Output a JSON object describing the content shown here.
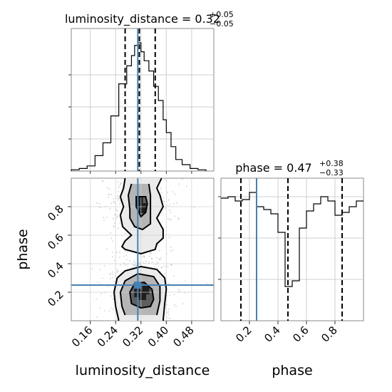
{
  "chart_data": {
    "type": "corner",
    "parameters": [
      "luminosity_distance",
      "phase"
    ],
    "axis_labels": {
      "x_left": "luminosity_distance",
      "x_right": "phase",
      "y_bottom_left": "phase"
    },
    "titles": [
      {
        "parameter": "luminosity_distance",
        "prefix": "luminosity_distance = ",
        "value": "0.32",
        "plus": "+0.05",
        "minus": "−0.05"
      },
      {
        "parameter": "phase",
        "prefix": "phase = ",
        "value": "0.47",
        "plus": "+0.38",
        "minus": "−0.33"
      }
    ],
    "truth": {
      "luminosity_distance": 0.31,
      "phase": 0.25
    },
    "truth_color": "#4682b4",
    "luminosity_distance_axis": {
      "range": [
        0.1,
        0.55
      ],
      "ticks": [
        0.16,
        0.24,
        0.32,
        0.4,
        0.48
      ],
      "tick_labels": [
        "0.16",
        "0.24",
        "0.32",
        "0.40",
        "0.48"
      ],
      "quantiles": [
        0.27,
        0.315,
        0.365
      ]
    },
    "phase_axis": {
      "range": [
        0.0,
        1.0
      ],
      "ticks": [
        0.2,
        0.4,
        0.6,
        0.8
      ],
      "tick_labels": [
        "0.2",
        "0.4",
        "0.6",
        "0.8"
      ],
      "quantiles": [
        0.14,
        0.47,
        0.85
      ]
    },
    "luminosity_distance_hist": {
      "bin_edges": [
        0.1,
        0.125,
        0.15,
        0.175,
        0.2,
        0.225,
        0.25,
        0.275,
        0.29,
        0.3,
        0.31,
        0.32,
        0.33,
        0.345,
        0.36,
        0.375,
        0.39,
        0.4,
        0.415,
        0.43,
        0.45,
        0.475,
        0.5,
        0.525
      ],
      "counts": [
        0.01,
        0.02,
        0.04,
        0.12,
        0.22,
        0.43,
        0.68,
        0.82,
        0.9,
        0.98,
        1.0,
        0.93,
        0.86,
        0.78,
        0.66,
        0.55,
        0.4,
        0.3,
        0.19,
        0.09,
        0.05,
        0.02,
        0.01
      ]
    },
    "phase_hist": {
      "bin_edges": [
        0.0,
        0.05,
        0.1,
        0.15,
        0.2,
        0.25,
        0.3,
        0.35,
        0.4,
        0.45,
        0.5,
        0.55,
        0.6,
        0.65,
        0.7,
        0.75,
        0.8,
        0.85,
        0.9,
        0.95,
        1.0
      ],
      "counts": [
        0.86,
        0.87,
        0.84,
        0.85,
        0.9,
        0.8,
        0.78,
        0.75,
        0.62,
        0.24,
        0.28,
        0.65,
        0.77,
        0.82,
        0.87,
        0.84,
        0.74,
        0.76,
        0.8,
        0.84
      ]
    },
    "scatter_note": "2D joint histogram with contour levels; density bands near phase 0.2-0.3 and 0.75-0.85",
    "contours_2d": [
      {
        "level": "outer_top",
        "points": [
          [
            0.27,
            1.0
          ],
          [
            0.265,
            0.93
          ],
          [
            0.255,
            0.87
          ],
          [
            0.265,
            0.8
          ],
          [
            0.255,
            0.74
          ],
          [
            0.262,
            0.66
          ],
          [
            0.29,
            0.6
          ],
          [
            0.27,
            0.56
          ],
          [
            0.26,
            0.52
          ],
          [
            0.27,
            0.5
          ],
          [
            0.32,
            0.47
          ],
          [
            0.365,
            0.5
          ],
          [
            0.37,
            0.54
          ],
          [
            0.39,
            0.58
          ],
          [
            0.39,
            0.64
          ],
          [
            0.37,
            0.72
          ],
          [
            0.39,
            0.8
          ],
          [
            0.38,
            0.88
          ],
          [
            0.37,
            0.93
          ],
          [
            0.385,
            1.0
          ]
        ]
      },
      {
        "level": "mid_top",
        "points": [
          [
            0.29,
            0.96
          ],
          [
            0.28,
            0.88
          ],
          [
            0.285,
            0.78
          ],
          [
            0.285,
            0.72
          ],
          [
            0.3,
            0.66
          ],
          [
            0.325,
            0.64
          ],
          [
            0.35,
            0.68
          ],
          [
            0.35,
            0.74
          ],
          [
            0.35,
            0.8
          ],
          [
            0.35,
            0.88
          ],
          [
            0.345,
            0.96
          ]
        ]
      },
      {
        "level": "inner_top",
        "points": [
          [
            0.305,
            0.87
          ],
          [
            0.305,
            0.8
          ],
          [
            0.32,
            0.73
          ],
          [
            0.335,
            0.76
          ],
          [
            0.34,
            0.82
          ],
          [
            0.335,
            0.87
          ]
        ]
      },
      {
        "level": "outer_bottom",
        "points": [
          [
            0.25,
            0.0
          ],
          [
            0.24,
            0.1
          ],
          [
            0.235,
            0.2
          ],
          [
            0.245,
            0.3
          ],
          [
            0.27,
            0.35
          ],
          [
            0.32,
            0.38
          ],
          [
            0.37,
            0.36
          ],
          [
            0.395,
            0.3
          ],
          [
            0.4,
            0.22
          ],
          [
            0.395,
            0.12
          ],
          [
            0.39,
            0.0
          ]
        ]
      },
      {
        "level": "mid_bottom",
        "points": [
          [
            0.27,
            0.04
          ],
          [
            0.26,
            0.1
          ],
          [
            0.255,
            0.2
          ],
          [
            0.27,
            0.28
          ],
          [
            0.31,
            0.33
          ],
          [
            0.36,
            0.31
          ],
          [
            0.38,
            0.24
          ],
          [
            0.38,
            0.14
          ],
          [
            0.37,
            0.04
          ]
        ]
      },
      {
        "level": "inner_bottom",
        "points": [
          [
            0.29,
            0.12
          ],
          [
            0.285,
            0.2
          ],
          [
            0.3,
            0.26
          ],
          [
            0.33,
            0.27
          ],
          [
            0.355,
            0.22
          ],
          [
            0.36,
            0.15
          ],
          [
            0.35,
            0.1
          ],
          [
            0.32,
            0.09
          ]
        ]
      }
    ]
  }
}
